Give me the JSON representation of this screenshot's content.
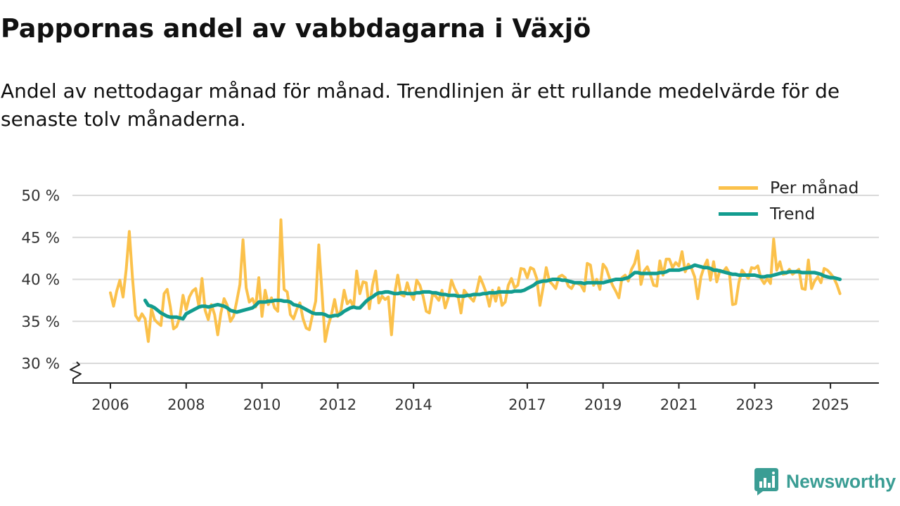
{
  "colors": {
    "gridline": "#d9d9d9",
    "axis": "#222222",
    "text": "#111111",
    "tick_label": "#333333",
    "brand": "#3a9d94"
  },
  "brand": {
    "name": "Newsworthy",
    "icon": "newsworthy-logo-icon"
  },
  "chart_data": {
    "type": "line",
    "title": "Pappornas andel av vabbdagarna i Växjö",
    "subtitle": "Andel av nettodagar månad för månad. Trendlinjen är ett rullande medelvärde för de senaste tolv månaderna.",
    "grid": true,
    "y_axis_break": true,
    "legend_position": "top-right",
    "ylim": [
      27.7,
      50
    ],
    "y_ticks": [
      {
        "value": 50,
        "label": "50 %"
      },
      {
        "value": 45,
        "label": "45 %"
      },
      {
        "value": 40,
        "label": "40 %"
      },
      {
        "value": 35,
        "label": "35 %"
      },
      {
        "value": 30,
        "label": "30 %"
      }
    ],
    "x_ticks": [
      {
        "value": 2006,
        "label": "2006"
      },
      {
        "value": 2008,
        "label": "2008"
      },
      {
        "value": 2010,
        "label": "2010"
      },
      {
        "value": 2012,
        "label": "2012"
      },
      {
        "value": 2014,
        "label": "2014"
      },
      {
        "value": 2017,
        "label": "2017"
      },
      {
        "value": 2019,
        "label": "2019"
      },
      {
        "value": 2021,
        "label": "2021"
      },
      {
        "value": 2023,
        "label": "2023"
      },
      {
        "value": 2025,
        "label": "2025"
      }
    ],
    "series": [
      {
        "name": "Per månad",
        "color": "#fbc14b",
        "start_year": 2006,
        "start_month": 1,
        "values": [
          38.4,
          36.8,
          38.6,
          39.9,
          37.9,
          41.2,
          45.7,
          40.2,
          35.7,
          35.1,
          35.9,
          35.3,
          32.6,
          36.5,
          35.2,
          34.8,
          34.5,
          38.3,
          38.8,
          36.7,
          34.1,
          34.4,
          35.5,
          38.1,
          36.4,
          37.9,
          38.6,
          38.9,
          36.8,
          40.1,
          36.3,
          35.2,
          37.0,
          35.8,
          33.4,
          36.0,
          37.7,
          36.9,
          35.0,
          35.6,
          37.4,
          39.4,
          44.7,
          39.0,
          37.3,
          37.7,
          36.7,
          40.2,
          35.6,
          38.7,
          37.0,
          37.8,
          36.6,
          36.2,
          47.1,
          38.8,
          38.5,
          35.8,
          35.3,
          36.4,
          37.2,
          35.3,
          34.2,
          34.0,
          35.8,
          37.4,
          44.1,
          38.5,
          32.6,
          34.5,
          35.8,
          37.6,
          35.6,
          36.3,
          38.7,
          37.1,
          37.5,
          36.7,
          41.0,
          38.3,
          39.7,
          39.6,
          36.5,
          39.3,
          41.0,
          37.2,
          38.0,
          37.6,
          37.9,
          33.4,
          38.3,
          40.5,
          38.2,
          38.0,
          39.6,
          38.3,
          37.6,
          39.9,
          39.3,
          38.0,
          36.2,
          36.0,
          38.2,
          38.0,
          37.5,
          38.7,
          36.6,
          37.8,
          39.9,
          38.9,
          38.2,
          36.0,
          38.7,
          38.2,
          37.8,
          37.4,
          38.6,
          40.3,
          39.4,
          38.4,
          36.8,
          38.7,
          37.4,
          39.0,
          36.9,
          37.3,
          39.3,
          40.1,
          39.0,
          39.3,
          41.3,
          41.2,
          40.2,
          41.4,
          41.2,
          40.1,
          36.9,
          39.0,
          41.4,
          39.8,
          39.4,
          38.9,
          40.3,
          40.5,
          40.2,
          39.2,
          38.9,
          39.6,
          39.5,
          39.3,
          38.6,
          41.9,
          41.7,
          39.3,
          40.0,
          38.8,
          41.8,
          41.3,
          40.2,
          39.3,
          38.6,
          37.8,
          40.2,
          40.5,
          39.8,
          41.2,
          41.9,
          43.4,
          39.4,
          41.0,
          41.5,
          40.5,
          39.3,
          39.2,
          42.2,
          40.5,
          42.4,
          42.4,
          41.4,
          42.0,
          41.6,
          43.3,
          40.9,
          41.8,
          41.3,
          40.3,
          37.7,
          40.3,
          41.5,
          42.3,
          39.9,
          42.1,
          39.7,
          41.1,
          40.9,
          41.4,
          40.7,
          37.0,
          37.1,
          39.6,
          41.1,
          40.6,
          40.1,
          41.4,
          41.3,
          41.6,
          40.1,
          39.5,
          40.1,
          39.5,
          44.8,
          41.1,
          42.1,
          40.6,
          40.7,
          41.2,
          40.6,
          40.9,
          41.2,
          38.9,
          38.8,
          42.3,
          38.9,
          39.8,
          40.3,
          39.6,
          41.3,
          41.1,
          40.7,
          40.2,
          39.4,
          38.3
        ]
      },
      {
        "name": "Trend",
        "color": "#129c8f",
        "start_year": 2006,
        "start_month": 12,
        "values": [
          37.5,
          36.9,
          36.8,
          36.6,
          36.3,
          36.0,
          35.8,
          35.6,
          35.5,
          35.5,
          35.5,
          35.4,
          35.3,
          35.9,
          36.1,
          36.3,
          36.5,
          36.7,
          36.8,
          36.8,
          36.7,
          36.8,
          36.9,
          37.0,
          36.9,
          36.8,
          36.6,
          36.3,
          36.2,
          36.1,
          36.2,
          36.3,
          36.4,
          36.5,
          36.6,
          36.9,
          37.3,
          37.3,
          37.3,
          37.4,
          37.4,
          37.5,
          37.5,
          37.5,
          37.4,
          37.4,
          37.3,
          37.0,
          36.9,
          36.8,
          36.6,
          36.4,
          36.2,
          36.0,
          35.9,
          35.9,
          35.9,
          35.8,
          35.6,
          35.6,
          35.7,
          35.7,
          35.9,
          36.2,
          36.4,
          36.6,
          36.7,
          36.6,
          36.6,
          37.0,
          37.4,
          37.7,
          37.9,
          38.2,
          38.4,
          38.4,
          38.5,
          38.5,
          38.4,
          38.3,
          38.3,
          38.4,
          38.4,
          38.3,
          38.3,
          38.3,
          38.4,
          38.4,
          38.5,
          38.5,
          38.5,
          38.4,
          38.4,
          38.3,
          38.2,
          38.2,
          38.1,
          38.1,
          38.1,
          38.0,
          38.0,
          38.0,
          38.1,
          38.1,
          38.2,
          38.2,
          38.2,
          38.3,
          38.3,
          38.4,
          38.4,
          38.4,
          38.5,
          38.5,
          38.5,
          38.5,
          38.5,
          38.6,
          38.6,
          38.6,
          38.7,
          38.9,
          39.1,
          39.3,
          39.6,
          39.7,
          39.8,
          39.8,
          39.9,
          40.0,
          40.0,
          40.0,
          39.9,
          39.9,
          39.8,
          39.7,
          39.6,
          39.6,
          39.6,
          39.5,
          39.6,
          39.6,
          39.6,
          39.6,
          39.6,
          39.6,
          39.7,
          39.8,
          39.9,
          40.0,
          40.0,
          40.0,
          40.1,
          40.2,
          40.5,
          40.8,
          40.8,
          40.7,
          40.7,
          40.7,
          40.7,
          40.7,
          40.7,
          40.8,
          40.8,
          40.9,
          41.1,
          41.1,
          41.1,
          41.1,
          41.2,
          41.3,
          41.4,
          41.5,
          41.7,
          41.6,
          41.5,
          41.4,
          41.4,
          41.3,
          41.1,
          41.1,
          41.0,
          40.9,
          40.8,
          40.7,
          40.6,
          40.6,
          40.5,
          40.5,
          40.5,
          40.5,
          40.5,
          40.5,
          40.4,
          40.3,
          40.3,
          40.4,
          40.4,
          40.5,
          40.6,
          40.7,
          40.8,
          40.8,
          40.9,
          40.9,
          40.9,
          40.9,
          40.8,
          40.8,
          40.8,
          40.8,
          40.8,
          40.7,
          40.6,
          40.4,
          40.3,
          40.2,
          40.2,
          40.1,
          40.0
        ]
      }
    ]
  }
}
